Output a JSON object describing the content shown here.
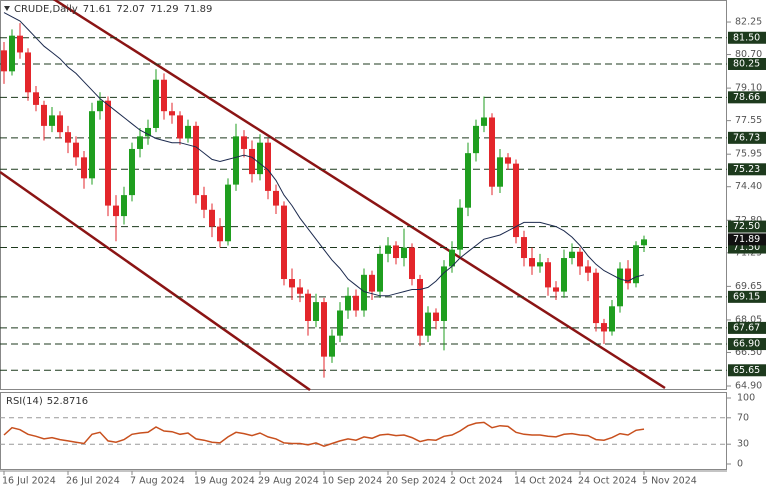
{
  "chart_data": {
    "type": "candlestick",
    "title": "CRUDE,Daily",
    "categories": [
      "16 Jul 2024",
      null,
      null,
      null,
      null,
      null,
      null,
      null,
      "26 Jul 2024",
      null,
      null,
      null,
      null,
      null,
      null,
      null,
      "7 Aug 2024",
      null,
      null,
      null,
      null,
      null,
      null,
      null,
      "19 Aug 2024",
      null,
      null,
      null,
      null,
      null,
      null,
      null,
      "29 Aug 2024",
      null,
      null,
      null,
      null,
      null,
      null,
      null,
      "10 Sep 2024",
      null,
      null,
      null,
      null,
      null,
      null,
      null,
      "20 Sep 2024",
      null,
      null,
      null,
      null,
      null,
      null,
      null,
      "2 Oct 2024",
      null,
      null,
      null,
      null,
      null,
      null,
      null,
      "14 Oct 2024",
      null,
      null,
      null,
      null,
      null,
      null,
      null,
      "24 Oct 2024",
      null,
      null,
      null,
      null,
      null,
      null,
      null,
      "5 Nov 2024"
    ],
    "open": [
      80.9,
      79.9,
      81.6,
      80.8,
      78.9,
      78.3,
      77.3,
      77.8,
      77.0,
      76.5,
      75.8,
      74.8,
      78.0,
      78.5,
      73.5,
      73.0,
      74.0,
      76.2,
      76.8,
      77.2,
      79.5,
      78.0,
      77.8,
      76.7,
      77.3,
      74.0,
      73.3,
      72.5,
      71.8,
      74.5,
      76.8,
      76.2,
      75.0,
      76.5,
      74.2,
      73.5,
      70.0,
      69.6,
      69.3,
      68.0,
      68.9,
      66.3,
      67.3,
      68.5,
      69.2,
      68.5,
      70.2,
      69.4,
      71.2,
      71.6,
      71.0,
      71.5,
      70.0,
      67.3,
      68.4,
      68.0,
      70.6,
      71.4,
      73.4,
      76.0,
      77.3,
      77.7,
      74.4,
      75.8,
      75.5,
      72.0,
      71.0,
      70.6,
      70.8,
      69.6,
      69.4,
      71.0,
      71.3,
      70.6,
      70.3,
      67.9,
      67.5,
      68.7,
      70.5,
      69.8,
      71.61
    ],
    "high": [
      81.3,
      81.9,
      82.2,
      81.0,
      79.2,
      78.5,
      78.2,
      78.0,
      77.3,
      76.8,
      76.1,
      78.4,
      78.9,
      78.7,
      74.0,
      74.4,
      76.5,
      77.2,
      77.6,
      80.0,
      79.8,
      78.4,
      78.0,
      77.6,
      77.5,
      74.4,
      73.6,
      72.9,
      74.8,
      77.4,
      77.1,
      76.6,
      76.9,
      76.7,
      74.5,
      73.7,
      70.5,
      70.0,
      69.5,
      69.3,
      69.1,
      67.6,
      68.9,
      69.6,
      69.5,
      70.5,
      70.4,
      71.6,
      72.0,
      71.8,
      72.4,
      71.7,
      70.2,
      68.7,
      68.6,
      70.9,
      71.8,
      73.8,
      76.5,
      77.6,
      78.7,
      77.9,
      76.2,
      76.0,
      75.7,
      72.3,
      71.5,
      71.2,
      71.0,
      69.9,
      71.4,
      71.7,
      71.5,
      70.9,
      70.5,
      68.1,
      69.0,
      70.8,
      70.9,
      71.8,
      72.07
    ],
    "low": [
      79.3,
      79.7,
      80.5,
      78.5,
      78.0,
      76.6,
      77.0,
      76.7,
      76.0,
      75.4,
      74.3,
      74.5,
      77.6,
      73.0,
      71.8,
      72.6,
      73.7,
      75.8,
      76.4,
      77.0,
      77.6,
      77.4,
      76.4,
      76.5,
      73.6,
      72.9,
      72.0,
      71.5,
      71.6,
      74.2,
      75.8,
      74.6,
      74.7,
      73.8,
      73.1,
      69.7,
      69.0,
      68.9,
      67.3,
      67.7,
      65.3,
      66.0,
      67.0,
      68.1,
      68.2,
      68.2,
      69.0,
      69.1,
      70.8,
      70.7,
      70.6,
      69.7,
      66.8,
      67.0,
      67.6,
      66.6,
      70.3,
      71.1,
      73.0,
      75.6,
      77.0,
      74.0,
      74.1,
      75.2,
      71.7,
      70.6,
      70.2,
      70.3,
      69.2,
      69.0,
      69.1,
      70.7,
      70.2,
      69.9,
      67.5,
      66.9,
      67.3,
      68.4,
      69.5,
      69.6,
      71.29
    ],
    "close": [
      79.9,
      81.6,
      80.8,
      78.9,
      78.3,
      77.3,
      77.8,
      77.0,
      76.5,
      75.8,
      74.8,
      78.0,
      78.5,
      73.5,
      73.0,
      74.0,
      76.2,
      76.8,
      77.2,
      79.5,
      78.0,
      77.8,
      76.7,
      77.3,
      74.0,
      73.3,
      72.5,
      71.8,
      74.5,
      76.8,
      76.2,
      75.0,
      76.5,
      74.2,
      73.5,
      70.0,
      69.6,
      69.3,
      68.0,
      68.9,
      66.3,
      67.3,
      68.5,
      69.2,
      68.5,
      70.2,
      69.4,
      71.2,
      71.6,
      71.0,
      71.5,
      70.0,
      67.3,
      68.4,
      68.0,
      70.6,
      71.4,
      73.4,
      76.0,
      77.3,
      77.7,
      74.4,
      75.8,
      75.5,
      72.0,
      71.0,
      70.6,
      70.8,
      69.6,
      69.4,
      71.0,
      71.3,
      70.6,
      70.3,
      67.9,
      67.5,
      68.7,
      70.5,
      69.8,
      71.61,
      71.89
    ],
    "up_color": "#1f9e1f",
    "down_color": "#e3262b",
    "ma": {
      "color": "#1c2a4e",
      "values": [
        82.7,
        82.5,
        82.3,
        81.9,
        81.5,
        81.1,
        80.8,
        80.5,
        80.1,
        79.8,
        79.4,
        79.0,
        78.6,
        78.3,
        78.0,
        77.7,
        77.4,
        77.1,
        76.9,
        76.7,
        76.6,
        76.5,
        76.5,
        76.4,
        76.3,
        76.0,
        75.7,
        75.6,
        75.7,
        75.8,
        75.9,
        75.8,
        75.5,
        75.2,
        74.7,
        74.0,
        73.5,
        72.9,
        72.4,
        71.9,
        71.4,
        70.9,
        70.5,
        70.0,
        69.7,
        69.4,
        69.3,
        69.2,
        69.2,
        69.3,
        69.4,
        69.5,
        69.5,
        69.6,
        69.9,
        70.3,
        70.6,
        71.0,
        71.3,
        71.6,
        71.9,
        72.0,
        72.1,
        72.3,
        72.5,
        72.7,
        72.7,
        72.7,
        72.6,
        72.5,
        72.3,
        72.0,
        71.6,
        71.1,
        70.7,
        70.4,
        70.2,
        70.0,
        69.9,
        70.1,
        70.2
      ]
    },
    "ylim": [
      64.71,
      83.3
    ],
    "yticks": [
      82.25,
      {
        "value": 80.7,
        "label": "80.70"
      },
      {
        "value": 79.1,
        "label": "79.10"
      },
      77.55,
      75.95,
      {
        "value": 74.4,
        "label": "74.40"
      },
      {
        "value": 72.8,
        "label": "72.80"
      },
      71.25,
      69.65,
      68.05,
      {
        "value": 66.5,
        "label": "66.50"
      },
      {
        "value": 64.9,
        "label": "64.90"
      }
    ],
    "levels": [
      {
        "value": 81.5,
        "label": "81.50"
      },
      80.25,
      78.66,
      76.73,
      75.23,
      {
        "value": 72.5,
        "label": "72.50"
      },
      {
        "value": 71.5,
        "label": "71.50"
      },
      69.15,
      67.67,
      {
        "value": 66.9,
        "label": "66.90"
      },
      65.65
    ],
    "level_color": "#1d3a1d",
    "rsi": {
      "name": "RSI(14)",
      "color": "#c8501e",
      "values": [
        44,
        55,
        52,
        45,
        42,
        38,
        40,
        37,
        35,
        33,
        31,
        45,
        48,
        35,
        33,
        37,
        45,
        47,
        48,
        56,
        50,
        49,
        45,
        47,
        38,
        36,
        33,
        32,
        41,
        48,
        46,
        43,
        47,
        41,
        38,
        32,
        31,
        31,
        29,
        32,
        27,
        31,
        35,
        38,
        36,
        41,
        39,
        44,
        45,
        43,
        44,
        40,
        34,
        37,
        36,
        42,
        44,
        50,
        58,
        62,
        63,
        55,
        58,
        57,
        48,
        45,
        44,
        44,
        42,
        41,
        45,
        46,
        44,
        43,
        37,
        36,
        40,
        46,
        44,
        51,
        52.8716
      ],
      "ylim": [
        -9.1,
        107.6
      ],
      "yticks": [
        100,
        70,
        30,
        0
      ],
      "guides": [
        70,
        30
      ]
    }
  }
}
